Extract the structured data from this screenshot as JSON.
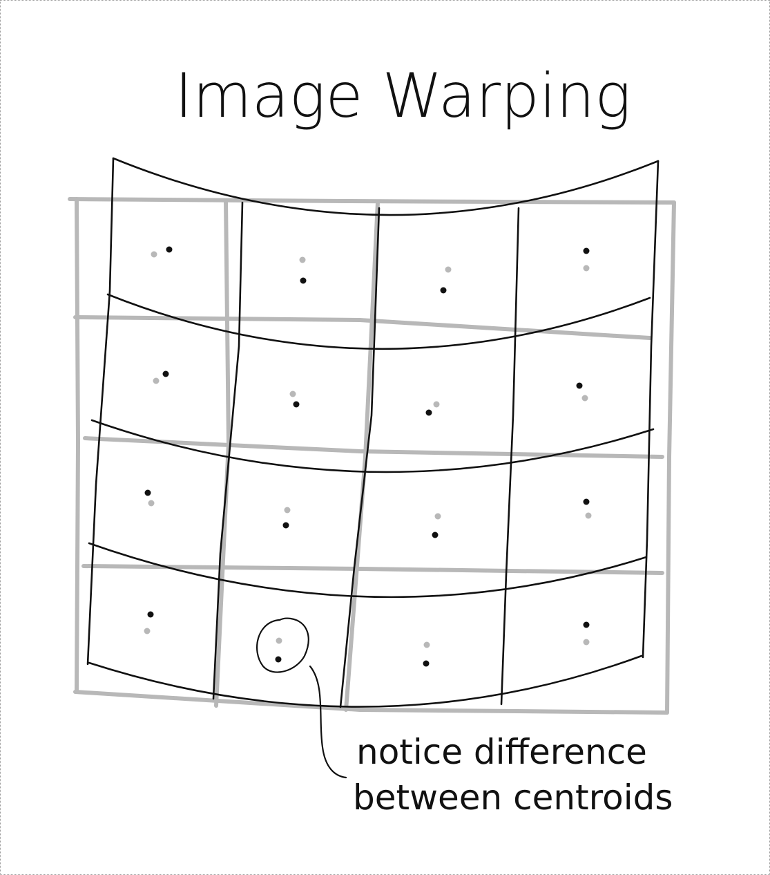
{
  "title": "Image Warping",
  "annotation": {
    "line1": "notice difference",
    "line2": "between centroids"
  },
  "colors": {
    "ink": "#111111",
    "original_grid": "#b8b8b8",
    "background": "#ffffff"
  }
}
